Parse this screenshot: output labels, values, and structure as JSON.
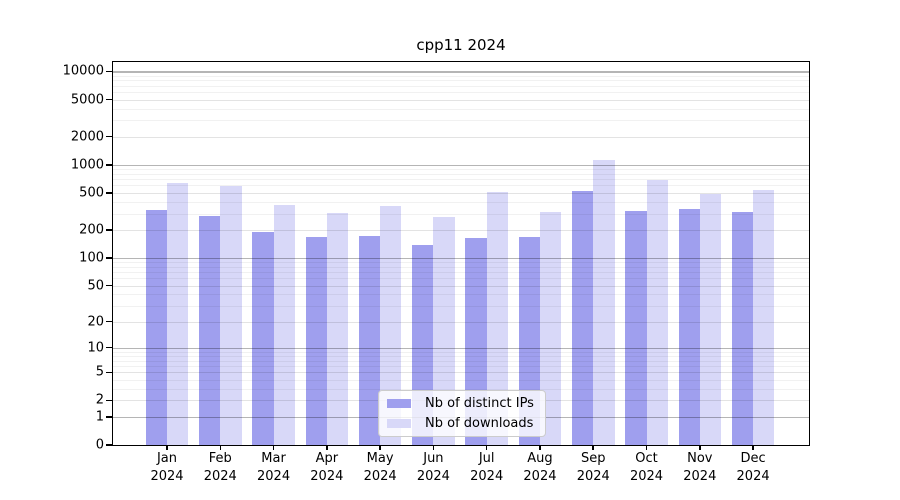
{
  "title": "cpp11 2024",
  "chart_data": {
    "type": "bar",
    "title": "cpp11 2024",
    "year": "2024",
    "months": [
      "Jan",
      "Feb",
      "Mar",
      "Apr",
      "May",
      "Jun",
      "Jul",
      "Aug",
      "Sep",
      "Oct",
      "Nov",
      "Dec"
    ],
    "categories": [
      "Jan 2024",
      "Feb 2024",
      "Mar 2024",
      "Apr 2024",
      "May 2024",
      "Jun 2024",
      "Jul 2024",
      "Aug 2024",
      "Sep 2024",
      "Oct 2024",
      "Nov 2024",
      "Dec 2024"
    ],
    "series": [
      {
        "name": "Nb of distinct IPs",
        "color": "#9f9fee",
        "values": [
          325,
          280,
          189,
          167,
          172,
          138,
          165,
          169,
          520,
          318,
          334,
          310
        ]
      },
      {
        "name": "Nb of downloads",
        "color": "#d8d8f8",
        "values": [
          635,
          595,
          372,
          302,
          363,
          277,
          513,
          315,
          1125,
          679,
          484,
          534
        ]
      }
    ],
    "yscale": "log10(value+1)",
    "yticks": [
      10000,
      5000,
      2000,
      1000,
      500,
      200,
      100,
      50,
      20,
      10,
      5,
      2,
      1,
      0
    ],
    "ylim": [
      0,
      12500
    ],
    "grid": true,
    "legend_position": "lower center",
    "colors": {
      "bar_ips": "#9f9fee",
      "bar_downloads": "#d8d8f8",
      "grid_decade": "#b5b5b5",
      "grid_labeled": "#e3e3e3",
      "grid_minor": "#f1f1f1",
      "axis": "#000000",
      "background": "#ffffff"
    }
  }
}
